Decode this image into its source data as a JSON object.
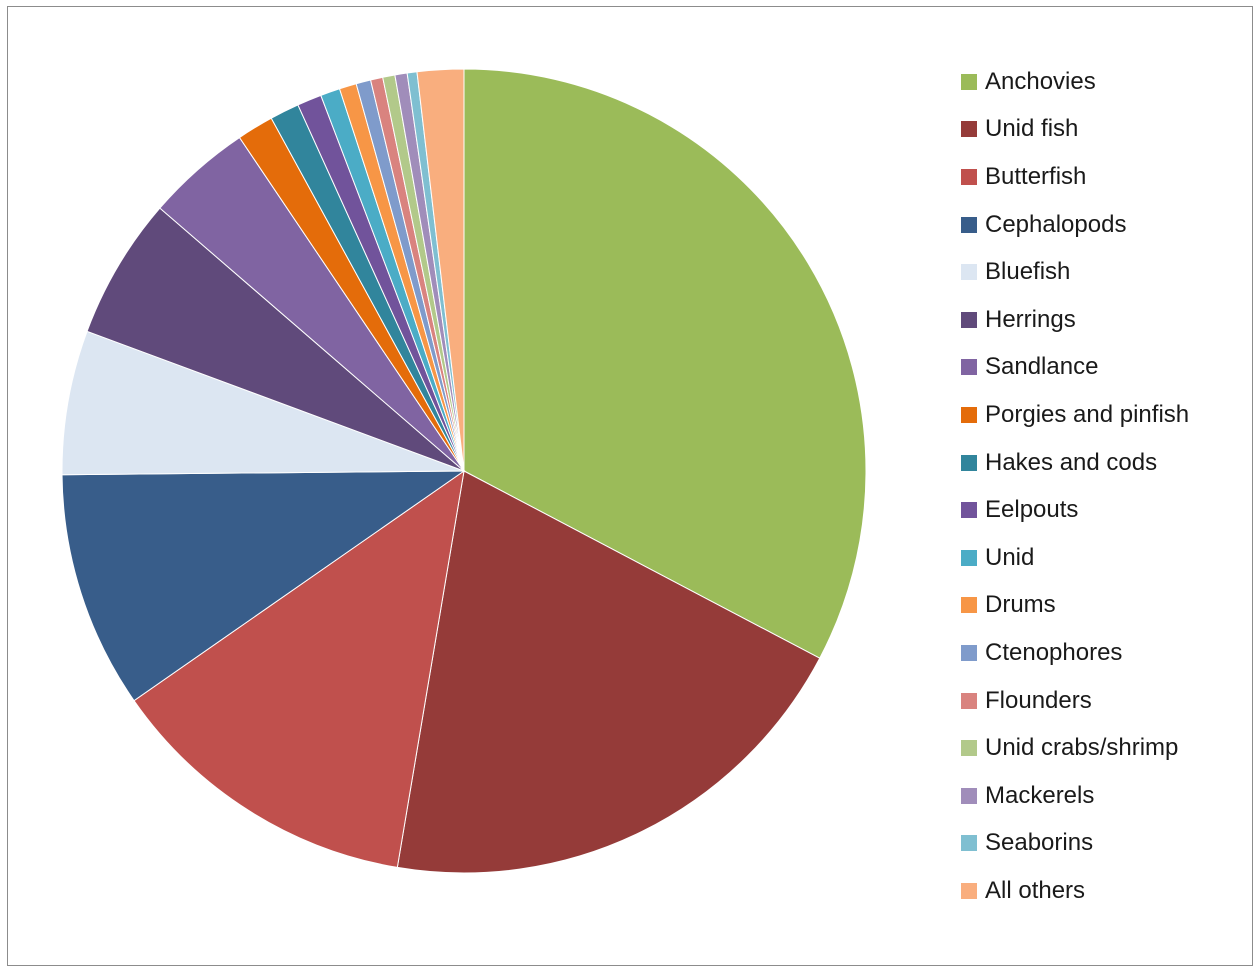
{
  "chart_data": {
    "type": "pie",
    "title": "",
    "legend_position": "right",
    "start_angle": "12 o'clock, clockwise",
    "slices": [
      {
        "label": "Anchovies",
        "value": 33.3,
        "color": "#9bbb59"
      },
      {
        "label": "Unid fish",
        "value": 20.3,
        "color": "#953b39"
      },
      {
        "label": "Butterfish",
        "value": 12.9,
        "color": "#c0504d"
      },
      {
        "label": "Cephalopods",
        "value": 9.7,
        "color": "#385d8a"
      },
      {
        "label": "Bluefish",
        "value": 5.9,
        "color": "#dce6f2"
      },
      {
        "label": "Herrings",
        "value": 5.8,
        "color": "#604a7b"
      },
      {
        "label": "Sandlance",
        "value": 4.3,
        "color": "#8064a2"
      },
      {
        "label": "Porgies and pinfish",
        "value": 1.5,
        "color": "#e46c0a"
      },
      {
        "label": "Hakes and cods",
        "value": 1.2,
        "color": "#31859c"
      },
      {
        "label": "Eelpouts",
        "value": 1.0,
        "color": "#71539b"
      },
      {
        "label": "Unid",
        "value": 0.8,
        "color": "#4bacc6"
      },
      {
        "label": "Drums",
        "value": 0.7,
        "color": "#f79646"
      },
      {
        "label": "Ctenophores",
        "value": 0.6,
        "color": "#7f9bcb"
      },
      {
        "label": "Flounders",
        "value": 0.5,
        "color": "#d9837f"
      },
      {
        "label": "Unid crabs/shrimp",
        "value": 0.5,
        "color": "#b2c98a"
      },
      {
        "label": "Mackerels",
        "value": 0.5,
        "color": "#a08dba"
      },
      {
        "label": "Seaborins",
        "value": 0.4,
        "color": "#7fbfd1"
      },
      {
        "label": "All others",
        "value": 1.9,
        "color": "#f9ae7e"
      }
    ]
  }
}
